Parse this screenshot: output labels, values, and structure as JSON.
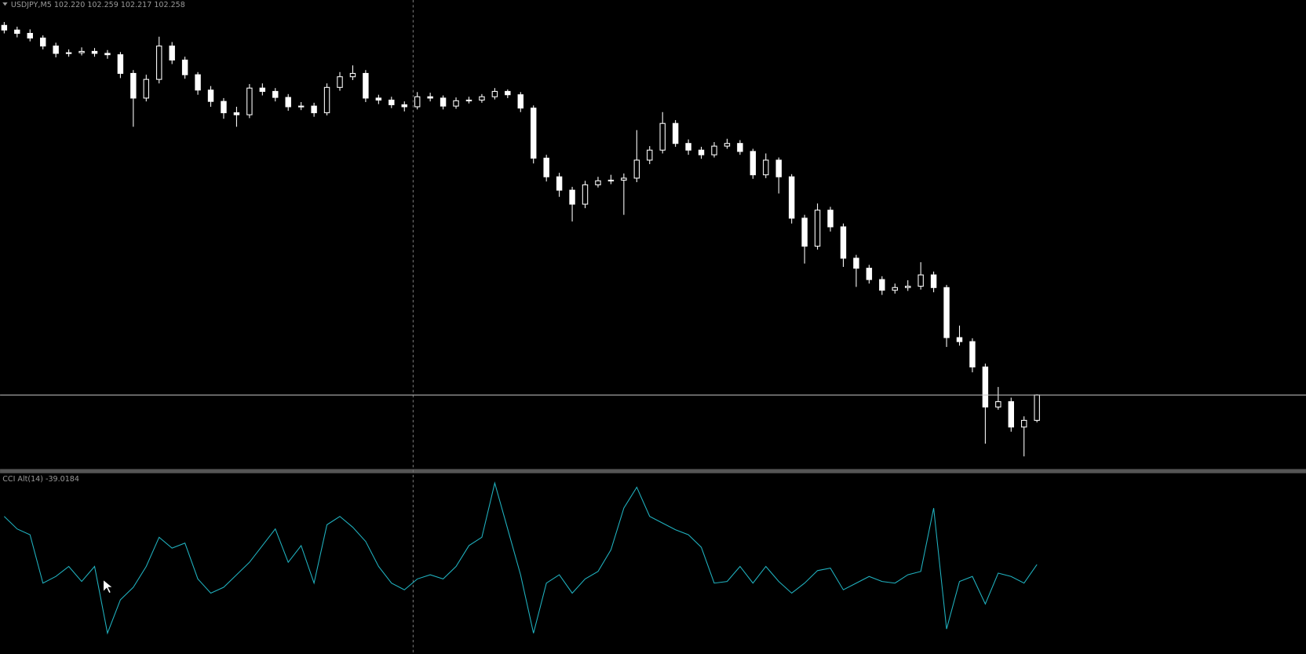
{
  "chart_data": [
    {
      "type": "candlestick",
      "title": "USDJPY,M5  102.220 102.259 102.217 102.258",
      "color": "#ffffff",
      "price_line_color": "#c8c8c8",
      "ylim": [
        102.147,
        102.85
      ],
      "open": [
        102.812,
        102.805,
        102.8,
        102.793,
        102.781,
        102.77,
        102.771,
        102.773,
        102.77,
        102.768,
        102.74,
        102.703,
        102.731,
        102.781,
        102.76,
        102.738,
        102.715,
        102.698,
        102.681,
        102.678,
        102.718,
        102.713,
        102.704,
        102.69,
        102.691,
        102.681,
        102.719,
        102.735,
        102.74,
        102.703,
        102.7,
        102.693,
        102.69,
        102.705,
        102.703,
        102.691,
        102.699,
        102.7,
        102.705,
        102.713,
        102.708,
        102.688,
        102.613,
        102.585,
        102.565,
        102.544,
        102.573,
        102.579,
        102.58,
        102.583,
        102.61,
        102.625,
        102.665,
        102.635,
        102.625,
        102.618,
        102.631,
        102.635,
        102.623,
        102.588,
        102.61,
        102.585,
        102.523,
        102.481,
        102.535,
        102.51,
        102.463,
        102.448,
        102.431,
        102.415,
        102.419,
        102.421,
        102.438,
        102.419,
        102.344,
        102.338,
        102.3,
        102.24,
        102.248,
        102.21,
        102.22
      ],
      "high": [
        102.817,
        102.81,
        102.806,
        102.797,
        102.786,
        102.776,
        102.779,
        102.778,
        102.775,
        102.772,
        102.745,
        102.738,
        102.795,
        102.787,
        102.765,
        102.742,
        102.721,
        102.703,
        102.69,
        102.724,
        102.725,
        102.718,
        102.709,
        102.697,
        102.696,
        102.725,
        102.742,
        102.752,
        102.745,
        102.708,
        102.705,
        102.698,
        102.712,
        102.711,
        102.707,
        102.704,
        102.705,
        102.709,
        102.718,
        102.716,
        102.712,
        102.692,
        102.618,
        102.591,
        102.57,
        102.579,
        102.585,
        102.588,
        102.59,
        102.655,
        102.631,
        102.682,
        102.67,
        102.641,
        102.63,
        102.637,
        102.642,
        102.64,
        102.627,
        102.62,
        102.614,
        102.589,
        102.528,
        102.545,
        102.54,
        102.515,
        102.468,
        102.453,
        102.436,
        102.425,
        102.43,
        102.457,
        102.443,
        102.423,
        102.362,
        102.343,
        102.305,
        102.27,
        102.254,
        102.226,
        102.259
      ],
      "low": [
        102.8,
        102.794,
        102.788,
        102.776,
        102.764,
        102.765,
        102.767,
        102.765,
        102.762,
        102.733,
        102.66,
        102.698,
        102.725,
        102.754,
        102.732,
        102.708,
        102.69,
        102.672,
        102.66,
        102.673,
        102.707,
        102.698,
        102.684,
        102.685,
        102.675,
        102.677,
        102.714,
        102.73,
        102.697,
        102.694,
        102.688,
        102.683,
        102.686,
        102.698,
        102.686,
        102.687,
        102.695,
        102.696,
        102.701,
        102.703,
        102.682,
        102.605,
        102.578,
        102.555,
        102.518,
        102.538,
        102.569,
        102.574,
        102.528,
        102.577,
        102.604,
        102.62,
        102.63,
        102.618,
        102.612,
        102.614,
        102.627,
        102.618,
        102.582,
        102.583,
        102.56,
        102.515,
        102.455,
        102.476,
        102.503,
        102.45,
        102.42,
        102.425,
        102.408,
        102.41,
        102.414,
        102.416,
        102.412,
        102.33,
        102.332,
        102.292,
        102.185,
        102.236,
        102.203,
        102.166,
        102.217
      ],
      "close": [
        102.805,
        102.8,
        102.793,
        102.781,
        102.77,
        102.771,
        102.773,
        102.77,
        102.768,
        102.74,
        102.703,
        102.731,
        102.781,
        102.76,
        102.738,
        102.715,
        102.698,
        102.681,
        102.678,
        102.718,
        102.713,
        102.704,
        102.69,
        102.691,
        102.681,
        102.719,
        102.735,
        102.74,
        102.703,
        102.7,
        102.693,
        102.69,
        102.705,
        102.703,
        102.691,
        102.699,
        102.7,
        102.705,
        102.713,
        102.708,
        102.688,
        102.613,
        102.585,
        102.565,
        102.544,
        102.573,
        102.579,
        102.58,
        102.583,
        102.61,
        102.625,
        102.665,
        102.635,
        102.625,
        102.618,
        102.631,
        102.635,
        102.623,
        102.588,
        102.61,
        102.585,
        102.523,
        102.481,
        102.535,
        102.51,
        102.463,
        102.448,
        102.431,
        102.415,
        102.419,
        102.421,
        102.438,
        102.419,
        102.344,
        102.338,
        102.3,
        102.24,
        102.248,
        102.21,
        102.22,
        102.258
      ]
    },
    {
      "type": "line",
      "title": "CCI Alt(14)",
      "color": "#20b2c0",
      "ylim": [
        -275,
        202
      ],
      "values": [
        88,
        55,
        39.6,
        -88,
        -70.4,
        -44,
        -83.6,
        -44,
        -220,
        -132,
        -99,
        -44,
        33,
        4.4,
        17.6,
        -77,
        -114.4,
        -99,
        -66,
        -33,
        11,
        55,
        -33,
        11,
        -88,
        66,
        88,
        59.4,
        22,
        -44,
        -88,
        -105.6,
        -77,
        -66,
        -77,
        -44,
        11,
        33,
        176,
        55,
        -66,
        -220,
        -88,
        -66,
        -114.4,
        -77,
        -57.2,
        0,
        110,
        165,
        88,
        70.4,
        52.8,
        39.6,
        6.6,
        -88,
        -83.6,
        -44,
        -88,
        -44,
        -83.6,
        -114.4,
        -88,
        -55,
        -48.4,
        -105.6,
        -88,
        -70.4,
        -83.6,
        -88,
        -66,
        -57.2,
        110,
        -209,
        -83.6,
        -70.4,
        -143,
        -61.6,
        -70.4,
        -88,
        -39.0184
      ]
    }
  ]
}
